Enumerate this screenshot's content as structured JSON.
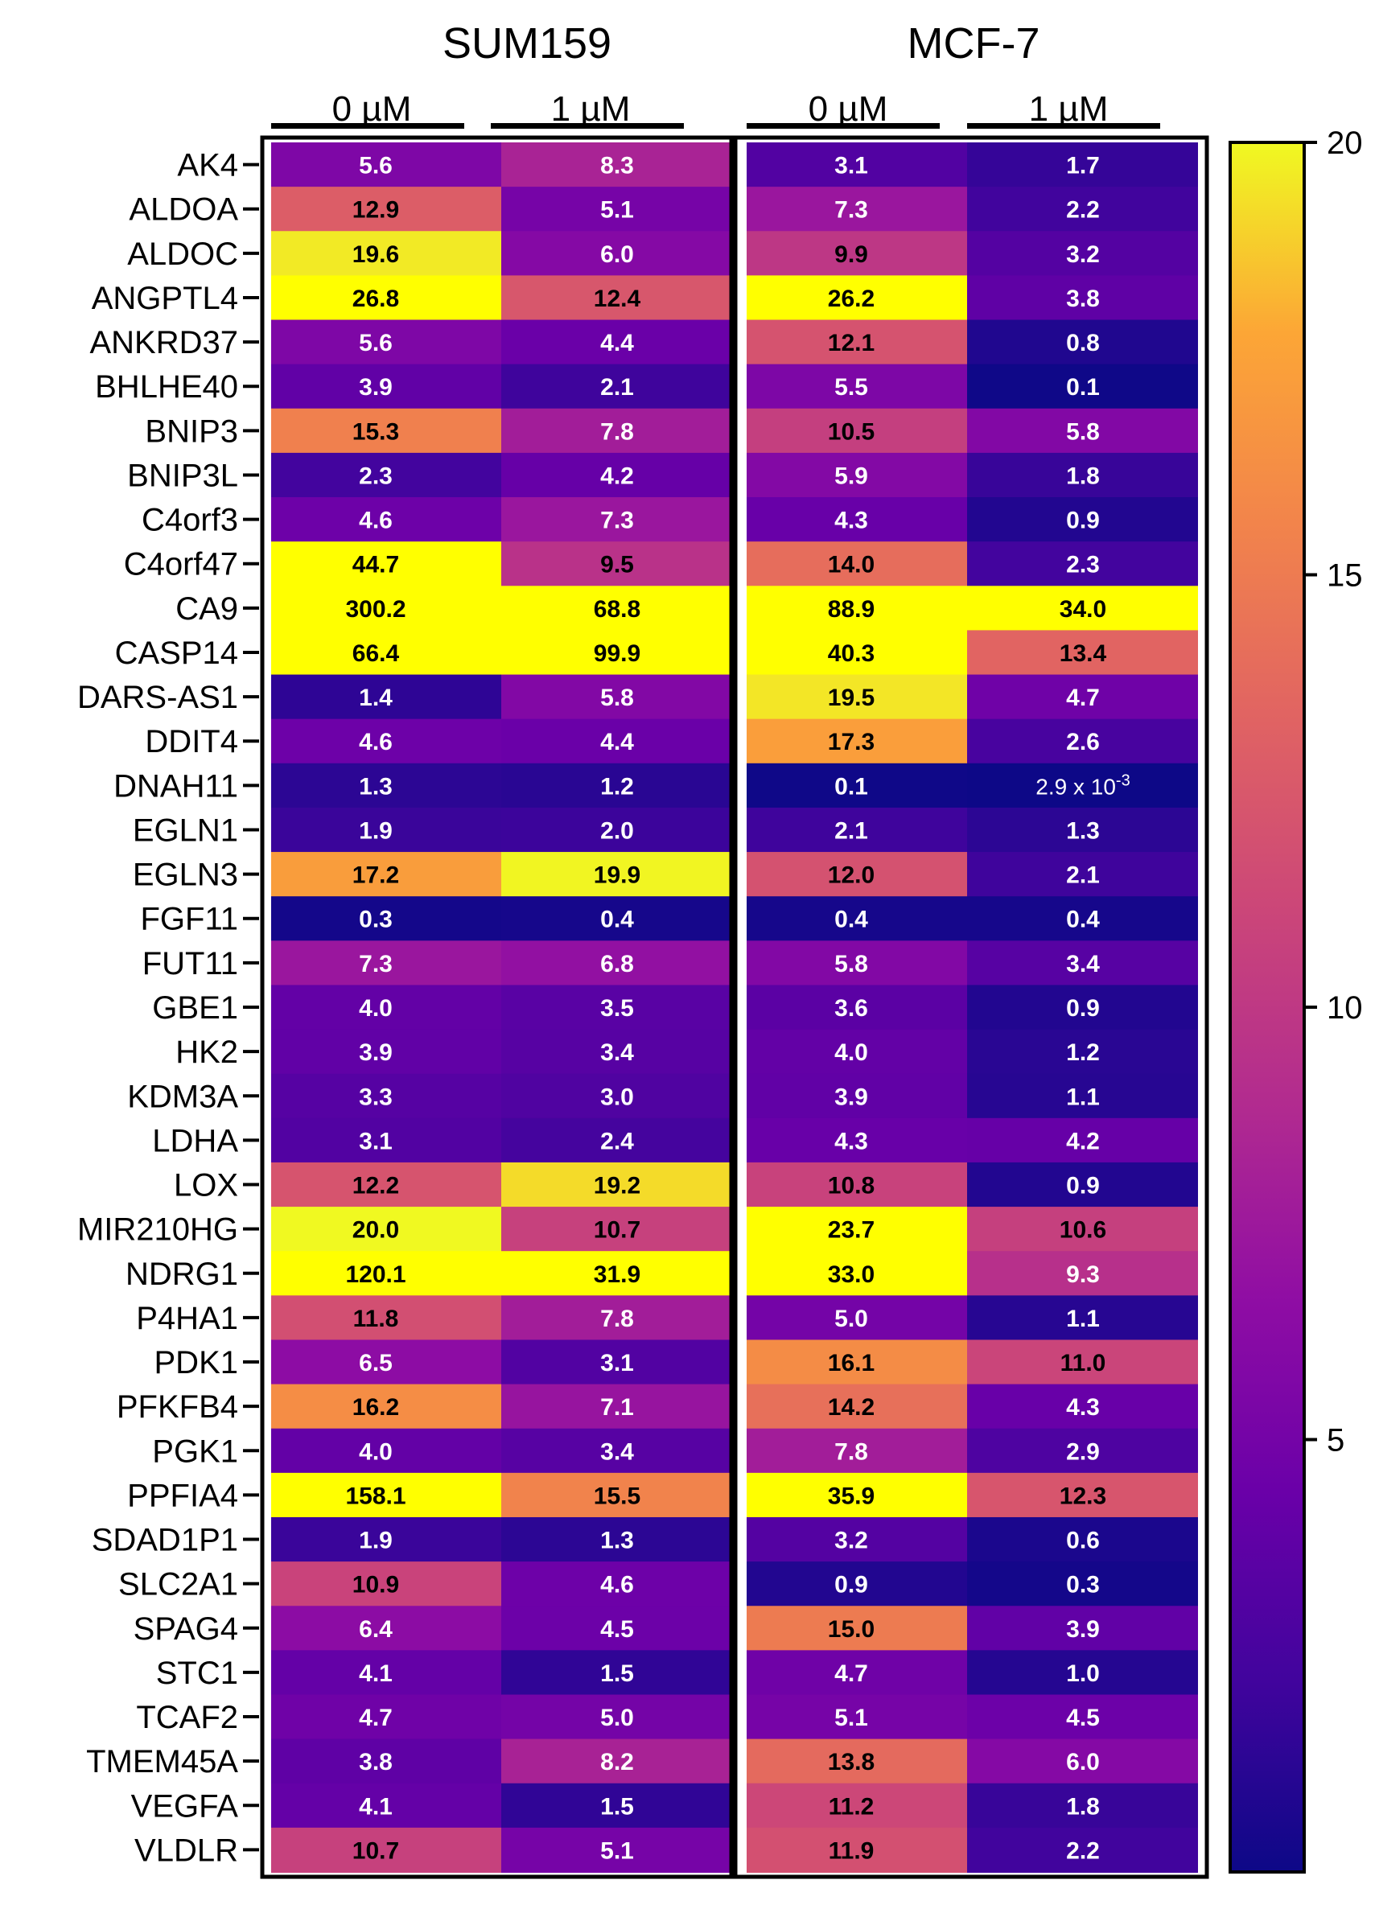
{
  "chart_data": {
    "type": "heatmap",
    "title": "",
    "groups": [
      "SUM159",
      "MCF-7"
    ],
    "conditions": [
      "0 µM",
      "1 µM"
    ],
    "genes": [
      "AK4",
      "ALDOA",
      "ALDOC",
      "ANGPTL4",
      "ANKRD37",
      "BHLHE40",
      "BNIP3",
      "BNIP3L",
      "C4orf3",
      "C4orf47",
      "CA9",
      "CASP14",
      "DARS-AS1",
      "DDIT4",
      "DNAH11",
      "EGLN1",
      "EGLN3",
      "FGF11",
      "FUT11",
      "GBE1",
      "HK2",
      "KDM3A",
      "LDHA",
      "LOX",
      "MIR210HG",
      "NDRG1",
      "P4HA1",
      "PDK1",
      "PFKFB4",
      "PGK1",
      "PPFIA4",
      "SDAD1P1",
      "SLC2A1",
      "SPAG4",
      "STC1",
      "TCAF2",
      "TMEM45A",
      "VEGFA",
      "VLDLR"
    ],
    "series": [
      {
        "name": "SUM159 0 µM",
        "values": [
          5.6,
          12.9,
          19.6,
          26.8,
          5.6,
          3.9,
          15.3,
          2.3,
          4.6,
          44.7,
          300.2,
          66.4,
          1.4,
          4.6,
          1.3,
          1.9,
          17.2,
          0.3,
          7.3,
          4.0,
          3.9,
          3.3,
          3.1,
          12.2,
          20.0,
          120.1,
          11.8,
          6.5,
          16.2,
          4.0,
          158.1,
          1.9,
          10.9,
          6.4,
          4.1,
          4.7,
          3.8,
          4.1,
          10.7
        ]
      },
      {
        "name": "SUM159 1 µM",
        "values": [
          8.3,
          5.1,
          6.0,
          12.4,
          4.4,
          2.1,
          7.8,
          4.2,
          7.3,
          9.5,
          68.8,
          99.9,
          5.8,
          4.4,
          1.2,
          2.0,
          19.9,
          0.4,
          6.8,
          3.5,
          3.4,
          3.0,
          2.4,
          19.2,
          10.7,
          31.9,
          7.8,
          3.1,
          7.1,
          3.4,
          15.5,
          1.3,
          4.6,
          4.5,
          1.5,
          5.0,
          8.2,
          1.5,
          5.1
        ]
      },
      {
        "name": "MCF-7 0 µM",
        "values": [
          3.1,
          7.3,
          9.9,
          26.2,
          12.1,
          5.5,
          10.5,
          5.9,
          4.3,
          14.0,
          88.9,
          40.3,
          19.5,
          17.3,
          0.1,
          2.1,
          12.0,
          0.4,
          5.8,
          3.6,
          4.0,
          3.9,
          4.3,
          10.8,
          23.7,
          33.0,
          5.0,
          16.1,
          14.2,
          7.8,
          35.9,
          3.2,
          0.9,
          15.0,
          4.7,
          5.1,
          13.8,
          11.2,
          11.9
        ]
      },
      {
        "name": "MCF-7 1 µM",
        "values": [
          1.7,
          2.2,
          3.2,
          3.8,
          0.8,
          0.1,
          5.8,
          1.8,
          0.9,
          2.3,
          34.0,
          13.4,
          4.7,
          2.6,
          0.0029,
          1.3,
          2.1,
          0.4,
          3.4,
          0.9,
          1.2,
          1.1,
          4.2,
          0.9,
          10.6,
          9.3,
          1.1,
          11.0,
          4.3,
          2.9,
          12.3,
          0.6,
          0.3,
          3.9,
          1.0,
          4.5,
          6.0,
          1.8,
          2.2
        ]
      }
    ],
    "cell_labels": {
      "MCF-7 1 µM": {
        "DNAH11": "2.9 x 10-3"
      }
    },
    "colorbar": {
      "min": 0,
      "max": 20,
      "ticks": [
        5,
        10,
        15,
        20
      ],
      "colormap": "plasma"
    }
  }
}
